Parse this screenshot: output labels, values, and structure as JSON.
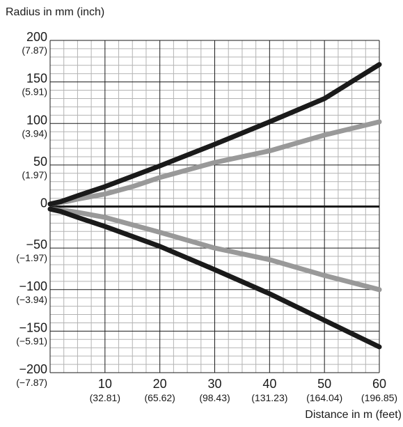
{
  "chart_data": {
    "type": "line",
    "ylabel": "Radius in mm (inch)",
    "xlabel": "Distance in m (feet)",
    "xlim": [
      0,
      60
    ],
    "ylim": [
      -200,
      200
    ],
    "grid": true,
    "x_ticks": [
      {
        "value": 10,
        "label": "10",
        "sub": "(32.81)"
      },
      {
        "value": 20,
        "label": "20",
        "sub": "(65.62)"
      },
      {
        "value": 30,
        "label": "30",
        "sub": "(98.43)"
      },
      {
        "value": 40,
        "label": "40",
        "sub": "(131.23)"
      },
      {
        "value": 50,
        "label": "50",
        "sub": "(164.04)"
      },
      {
        "value": 60,
        "label": "60",
        "sub": "(196.85)"
      }
    ],
    "y_ticks": [
      {
        "value": 200,
        "label": "200",
        "sub": "(7.87)"
      },
      {
        "value": 150,
        "label": "150",
        "sub": "(5.91)"
      },
      {
        "value": 100,
        "label": "100",
        "sub": "(3.94)"
      },
      {
        "value": 50,
        "label": "50",
        "sub": "(1.97)"
      },
      {
        "value": 0,
        "label": "0",
        "sub": ""
      },
      {
        "value": -50,
        "label": "−50",
        "sub": "(−1.97)"
      },
      {
        "value": -100,
        "label": "−100",
        "sub": "(−3.94)"
      },
      {
        "value": -150,
        "label": "−150",
        "sub": "(−5.91)"
      },
      {
        "value": -200,
        "label": "−200",
        "sub": "(−7.87)"
      }
    ],
    "series": [
      {
        "color": "#1a1a1a",
        "x": [
          0,
          2,
          5,
          10,
          20,
          30,
          40,
          50,
          60
        ],
        "y": [
          3,
          6,
          13,
          24,
          49,
          75,
          102,
          130,
          171
        ]
      },
      {
        "color": "#999999",
        "x": [
          0,
          3,
          5,
          10,
          15,
          20,
          30,
          40,
          50,
          60
        ],
        "y": [
          3,
          6,
          9,
          15,
          24,
          35,
          53,
          67,
          86,
          102
        ]
      },
      {
        "color": "#999999",
        "x": [
          0,
          3,
          5,
          10,
          15,
          20,
          30,
          40,
          50,
          60
        ],
        "y": [
          -3,
          -5,
          -7,
          -13,
          -22,
          -31,
          -50,
          -64,
          -83,
          -100
        ]
      },
      {
        "color": "#1a1a1a",
        "x": [
          0,
          2,
          5,
          10,
          20,
          30,
          40,
          50,
          60
        ],
        "y": [
          -3,
          -6,
          -13,
          -24,
          -48,
          -76,
          -105,
          -137,
          -169
        ]
      }
    ]
  }
}
